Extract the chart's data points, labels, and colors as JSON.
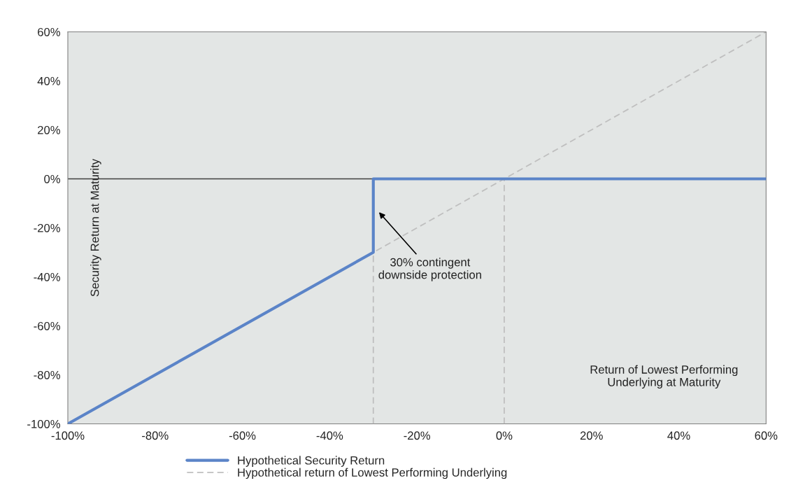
{
  "chart_data": {
    "type": "line",
    "xlabel": "Return of Lowest Performing\nUnderlying at Maturity",
    "ylabel": "Security Return at Maturity",
    "series": [
      {
        "name": "Hypothetical return of Lowest Performing Underlying",
        "color": "#bfbfbf",
        "line_style": "dashed",
        "x": [
          -100,
          60
        ],
        "values": [
          -100,
          60
        ]
      },
      {
        "color": "#bfbfbf",
        "line_style": "dashed",
        "x": [
          -30,
          -30
        ],
        "values": [
          -100,
          -30
        ]
      },
      {
        "color": "#bfbfbf",
        "line_style": "dashed",
        "x": [
          0,
          0
        ],
        "values": [
          -100,
          0
        ]
      },
      {
        "name": "Hypothetical Security Return",
        "color": "#5b84c8",
        "line_style": "solid",
        "x": [
          -100,
          -30,
          -30,
          60
        ],
        "values": [
          -100,
          -30,
          0,
          0
        ]
      }
    ],
    "annotations": [
      {
        "text": "30% contingent\ndownside protection",
        "x": -29,
        "y": -13
      }
    ],
    "ref_lines": [
      {
        "axis": "y",
        "value": 0,
        "color": "#404040",
        "line_style": "solid"
      }
    ],
    "xlim": [
      -100,
      60
    ],
    "ylim": [
      -100,
      60
    ],
    "xticks": [
      {
        "value": -100,
        "label": "-100%"
      },
      {
        "value": -80,
        "label": "-80%"
      },
      {
        "value": -60,
        "label": "-60%"
      },
      {
        "value": -40,
        "label": "-40%"
      },
      {
        "value": -20,
        "label": "-20%"
      },
      {
        "value": 0,
        "label": "0%"
      },
      {
        "value": 20,
        "label": "20%"
      },
      {
        "value": 40,
        "label": "40%"
      },
      {
        "value": 60,
        "label": "60%"
      }
    ],
    "yticks": [
      {
        "value": -100,
        "label": "-100%"
      },
      {
        "value": -80,
        "label": "-80%"
      },
      {
        "value": -60,
        "label": "-60%"
      },
      {
        "value": -40,
        "label": "-40%"
      },
      {
        "value": -20,
        "label": "-20%"
      },
      {
        "value": 0,
        "label": "0%"
      },
      {
        "value": 20,
        "label": "20%"
      },
      {
        "value": 40,
        "label": "40%"
      },
      {
        "value": 60,
        "label": "60%"
      }
    ],
    "legend": "bottom",
    "grid": false
  }
}
